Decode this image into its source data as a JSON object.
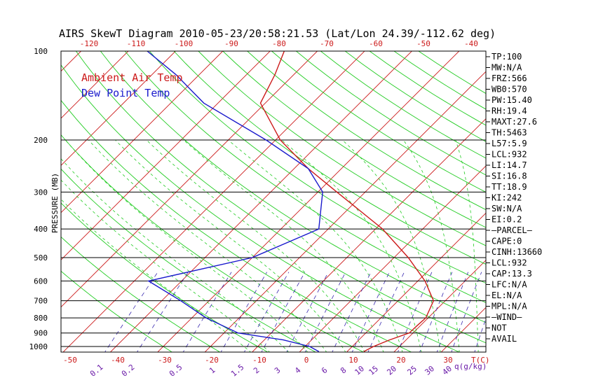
{
  "title": "AIRS SkewT Diagram 2010-05-23/20:58:21.53 (Lat/Lon 24.39/-112.62 deg)",
  "legend": [
    {
      "label": "Ambient Air Temp",
      "color": "#cc1a1a"
    },
    {
      "label": "Dew Point Temp",
      "color": "#1a1acc"
    }
  ],
  "colors": {
    "isotherm": "#cc1a1a",
    "dry_adiabat": "#22cc22",
    "moist_adiabat": "#22cc22",
    "mixing_ratio": "#3a2ab0",
    "isobar": "#000000",
    "temp_profile": "#cc1a1a",
    "dew_profile": "#1a1acc",
    "tick_red": "#cc1a1a",
    "tick_purple": "#6a1aa8"
  },
  "chart_data": {
    "type": "line",
    "title": "AIRS SkewT Diagram 2010-05-23/20:58:21.53 (Lat/Lon 24.39/-112.62 deg)",
    "ylabel": "PRESSURE (MB)",
    "xlabel": "T(C)",
    "y_scale": "log",
    "ylim": [
      1040,
      100
    ],
    "x_skew_deg": 45,
    "pressure_levels": [
      100,
      200,
      300,
      400,
      500,
      600,
      700,
      800,
      900,
      1000
    ],
    "bottom_temp_ticks": [
      "-50",
      "-40",
      "-30",
      "-20",
      "-10",
      "0",
      "10",
      "20",
      "30"
    ],
    "bottom_t_unit_label": "T(C)",
    "top_temp_ticks": [
      "-120",
      "-110",
      "-100",
      "-90",
      "-80",
      "-70",
      "-60",
      "-50",
      "-40"
    ],
    "mixing_ratio_ticks": [
      "0.1",
      "0.2",
      "0.5",
      "1",
      "1.5",
      "2",
      "3",
      "4",
      "6",
      "8",
      "10",
      "15",
      "20",
      "25",
      "30",
      "40"
    ],
    "mixing_ratio_unit_label": "q(g/kg)",
    "series": [
      {
        "name": "Ambient Air Temp",
        "points": [
          {
            "p": 1040,
            "t": 13.5
          },
          {
            "p": 1000,
            "t": 14.5
          },
          {
            "p": 950,
            "t": 16.5
          },
          {
            "p": 900,
            "t": 19.2
          },
          {
            "p": 850,
            "t": 19.3
          },
          {
            "p": 800,
            "t": 19.5
          },
          {
            "p": 700,
            "t": 17.5
          },
          {
            "p": 600,
            "t": 11.5
          },
          {
            "p": 500,
            "t": 3
          },
          {
            "p": 400,
            "t": -8.5
          },
          {
            "p": 300,
            "t": -26
          },
          {
            "p": 250,
            "t": -37
          },
          {
            "p": 200,
            "t": -49
          },
          {
            "p": 150,
            "t": -61
          },
          {
            "p": 120,
            "t": -64
          },
          {
            "p": 100,
            "t": -67
          }
        ]
      },
      {
        "name": "Dew Point Temp",
        "points": [
          {
            "p": 1040,
            "t": 4
          },
          {
            "p": 1000,
            "t": 1
          },
          {
            "p": 950,
            "t": -6
          },
          {
            "p": 900,
            "t": -17
          },
          {
            "p": 800,
            "t": -27
          },
          {
            "p": 700,
            "t": -36
          },
          {
            "p": 600,
            "t": -47
          },
          {
            "p": 500,
            "t": -30
          },
          {
            "p": 400,
            "t": -22
          },
          {
            "p": 300,
            "t": -29
          },
          {
            "p": 250,
            "t": -37
          },
          {
            "p": 200,
            "t": -52
          },
          {
            "p": 150,
            "t": -73
          },
          {
            "p": 120,
            "t": -85
          },
          {
            "p": 100,
            "t": -96
          }
        ]
      }
    ]
  },
  "stats": [
    "TP:100",
    "MW:N/A",
    "FRZ:566",
    "WB0:570",
    "PW:15.40",
    "RH:19.4",
    "MAXT:27.6",
    "TH:5463",
    "L57:5.9",
    "LCL:932",
    "LI:14.7",
    "SI:16.8",
    "TT:18.9",
    "KI:242",
    "SW:N/A",
    "EI:0.2",
    "–PARCEL–",
    "CAPE:0",
    "CINH:13660",
    "LCL:932",
    "CAP:13.3",
    "LFC:N/A",
    "EL:N/A",
    "MPL:N/A",
    "–WIND–",
    "NOT",
    "AVAIL"
  ]
}
